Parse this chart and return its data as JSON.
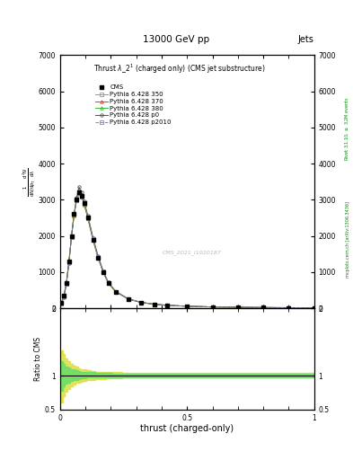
{
  "title_top": "13000 GeV pp",
  "title_right": "Jets",
  "plot_title": "Thrust $\\lambda\\_2^1$ (charged only) (CMS jet substructure)",
  "xlabel": "thrust (charged-only)",
  "ylabel_ratio": "Ratio to CMS",
  "right_label_top": "Rivet 3.1.10, $\\geq$ 3.2M events",
  "right_label_bot": "mcplots.cern.ch [arXiv:1306.3436]",
  "watermark": "CMS_2021_I1920187",
  "xlim": [
    0,
    1
  ],
  "ylim_main": [
    0,
    7000
  ],
  "ylim_ratio": [
    0.5,
    2.0
  ],
  "yticks_main": [
    0,
    1000,
    2000,
    3000,
    4000,
    5000,
    6000,
    7000
  ],
  "yticklabels_main": [
    "0",
    "1000",
    "2000",
    "3000",
    "4000",
    "5000",
    "6000",
    "7000"
  ],
  "yticks_ratio": [
    0.5,
    1.0,
    2.0
  ],
  "yticklabels_ratio": [
    "0.5",
    "1",
    "2"
  ],
  "cms_color": "#000000",
  "py350_color": "#aaaa00",
  "py370_color": "#ee3333",
  "py380_color": "#33bb33",
  "py_p0_color": "#555555",
  "py_p2010_color": "#8888aa",
  "band_green_color": "#66dd66",
  "band_yellow_color": "#dddd44",
  "legend_entries": [
    "CMS",
    "Pythia 6.428 350",
    "Pythia 6.428 370",
    "Pythia 6.428 380",
    "Pythia 6.428 p0",
    "Pythia 6.428 p2010"
  ],
  "x_data": [
    0.005,
    0.015,
    0.025,
    0.035,
    0.045,
    0.055,
    0.065,
    0.075,
    0.085,
    0.095,
    0.11,
    0.13,
    0.15,
    0.17,
    0.19,
    0.22,
    0.27,
    0.32,
    0.37,
    0.42,
    0.5,
    0.6,
    0.7,
    0.8,
    0.9,
    1.0
  ],
  "cms_y": [
    150,
    350,
    700,
    1300,
    2000,
    2600,
    3000,
    3200,
    3100,
    2900,
    2500,
    1900,
    1400,
    1000,
    700,
    450,
    250,
    160,
    110,
    80,
    55,
    35,
    25,
    18,
    13,
    8
  ],
  "py350_y": [
    140,
    330,
    680,
    1270,
    1970,
    2570,
    2980,
    3180,
    3080,
    2870,
    2480,
    1880,
    1390,
    990,
    695,
    448,
    248,
    158,
    108,
    79,
    54,
    34,
    24,
    17,
    12,
    8
  ],
  "py370_y": [
    145,
    340,
    690,
    1280,
    1980,
    2580,
    2990,
    3190,
    3090,
    2880,
    2490,
    1890,
    1395,
    995,
    698,
    449,
    249,
    159,
    109,
    80,
    55,
    35,
    25,
    18,
    13,
    8
  ],
  "py380_y": [
    148,
    345,
    695,
    1290,
    1990,
    2590,
    2995,
    3195,
    3095,
    2885,
    2495,
    1895,
    1398,
    998,
    699,
    450,
    250,
    160,
    110,
    80,
    55,
    35,
    25,
    18,
    13,
    8
  ],
  "py_p0_y": [
    130,
    310,
    660,
    1250,
    1960,
    2580,
    3050,
    3350,
    3200,
    2950,
    2550,
    1950,
    1440,
    1030,
    720,
    460,
    255,
    162,
    112,
    81,
    56,
    36,
    26,
    19,
    14,
    9
  ],
  "py_p2010_y": [
    135,
    320,
    670,
    1260,
    1965,
    2575,
    3010,
    3230,
    3110,
    2900,
    2510,
    1910,
    1410,
    1010,
    708,
    453,
    252,
    161,
    111,
    80,
    55,
    35,
    25,
    18,
    13,
    8
  ],
  "ratio_x": [
    0.005,
    0.015,
    0.025,
    0.035,
    0.045,
    0.055,
    0.065,
    0.075,
    0.085,
    0.095,
    0.11,
    0.13,
    0.15,
    0.17,
    0.19,
    0.22,
    0.27,
    0.32,
    0.37,
    0.42,
    0.5,
    0.6,
    0.7,
    0.8,
    0.9,
    1.0
  ],
  "ratio_yellow_lo": [
    0.6,
    0.7,
    0.76,
    0.8,
    0.84,
    0.87,
    0.89,
    0.9,
    0.91,
    0.92,
    0.93,
    0.94,
    0.95,
    0.95,
    0.96,
    0.96,
    0.97,
    0.97,
    0.97,
    0.97,
    0.97,
    0.97,
    0.97,
    0.97,
    0.97,
    0.97
  ],
  "ratio_yellow_hi": [
    1.38,
    1.32,
    1.26,
    1.22,
    1.18,
    1.15,
    1.13,
    1.11,
    1.1,
    1.09,
    1.08,
    1.07,
    1.06,
    1.06,
    1.05,
    1.05,
    1.04,
    1.04,
    1.04,
    1.04,
    1.04,
    1.04,
    1.04,
    1.04,
    1.04,
    1.04
  ],
  "ratio_green_lo": [
    0.78,
    0.84,
    0.88,
    0.9,
    0.92,
    0.93,
    0.94,
    0.95,
    0.96,
    0.96,
    0.97,
    0.97,
    0.97,
    0.97,
    0.98,
    0.98,
    0.98,
    0.98,
    0.98,
    0.98,
    0.98,
    0.98,
    0.98,
    0.98,
    0.98,
    0.98
  ],
  "ratio_green_hi": [
    1.22,
    1.18,
    1.14,
    1.12,
    1.1,
    1.09,
    1.08,
    1.07,
    1.06,
    1.06,
    1.05,
    1.05,
    1.04,
    1.04,
    1.04,
    1.03,
    1.03,
    1.03,
    1.03,
    1.03,
    1.03,
    1.03,
    1.03,
    1.03,
    1.03,
    1.03
  ]
}
